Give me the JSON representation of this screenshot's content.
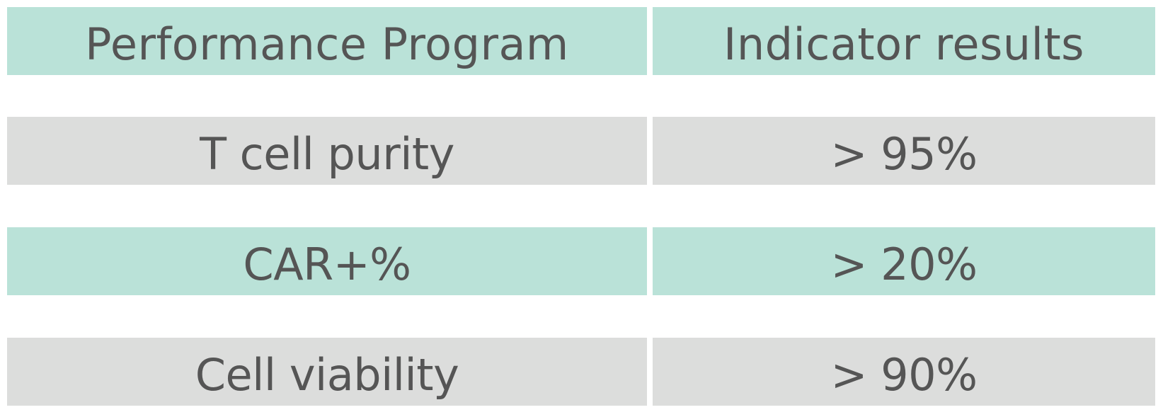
{
  "table": {
    "header": {
      "col1": "Performance Program",
      "col2": "Indicator results"
    },
    "rows": [
      {
        "program": "T cell purity",
        "result": "> 95%"
      },
      {
        "program": "CAR+%",
        "result": "> 20%"
      },
      {
        "program": "Cell viability",
        "result": "> 90%"
      }
    ]
  },
  "colors": {
    "header_bg": "#bae2d8",
    "row_gray_bg": "#dcdddc",
    "row_green_bg": "#bae2d8",
    "text": "#555555"
  }
}
